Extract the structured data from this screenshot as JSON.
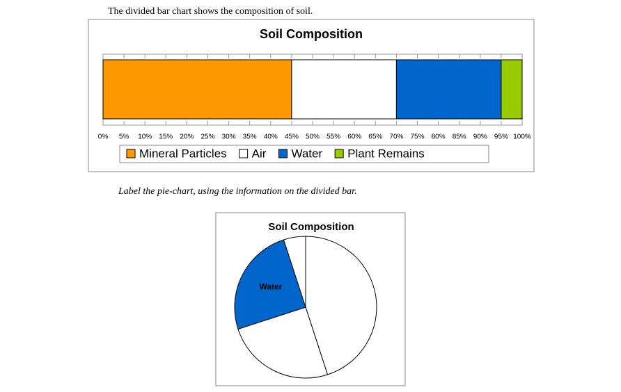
{
  "intro": "The divided bar chart shows the composition of soil.",
  "instruction": "Label the pie-chart, using the information on the divided bar.",
  "chart_data": [
    {
      "type": "bar",
      "stacked": true,
      "horizontal": true,
      "title": "Soil Composition",
      "series": [
        {
          "name": "Mineral Particles",
          "color": "#ff9900",
          "values": [
            45
          ]
        },
        {
          "name": "Air",
          "color": "#ffffff",
          "values": [
            25
          ]
        },
        {
          "name": "Water",
          "color": "#0066cc",
          "values": [
            25
          ]
        },
        {
          "name": "Plant Remains",
          "color": "#99cc00",
          "values": [
            5
          ]
        }
      ],
      "xlim": [
        0,
        100
      ],
      "xticks": [
        {
          "value": 0,
          "label": "0%"
        },
        {
          "value": 5,
          "label": "5%"
        },
        {
          "value": 10,
          "label": "10%"
        },
        {
          "value": 15,
          "label": "15%"
        },
        {
          "value": 20,
          "label": "20%"
        },
        {
          "value": 25,
          "label": "25%"
        },
        {
          "value": 30,
          "label": "30%"
        },
        {
          "value": 35,
          "label": "35%"
        },
        {
          "value": 40,
          "label": "40%"
        },
        {
          "value": 45,
          "label": "45%"
        },
        {
          "value": 50,
          "label": "50%"
        },
        {
          "value": 55,
          "label": "55%"
        },
        {
          "value": 60,
          "label": "60%"
        },
        {
          "value": 65,
          "label": "65%"
        },
        {
          "value": 70,
          "label": "70%"
        },
        {
          "value": 75,
          "label": "75%"
        },
        {
          "value": 80,
          "label": "80%"
        },
        {
          "value": 85,
          "label": "85%"
        },
        {
          "value": 90,
          "label": "90%"
        },
        {
          "value": 95,
          "label": "95%"
        },
        {
          "value": 100,
          "label": "100%"
        }
      ],
      "legend": "bottom"
    },
    {
      "type": "pie",
      "title": "Soil Composition",
      "categories": [
        null,
        null,
        "Water",
        null
      ],
      "values": [
        45,
        25,
        25,
        5
      ],
      "colors": [
        "#ffffff",
        "#ffffff",
        "#0066cc",
        "#ffffff"
      ]
    }
  ]
}
